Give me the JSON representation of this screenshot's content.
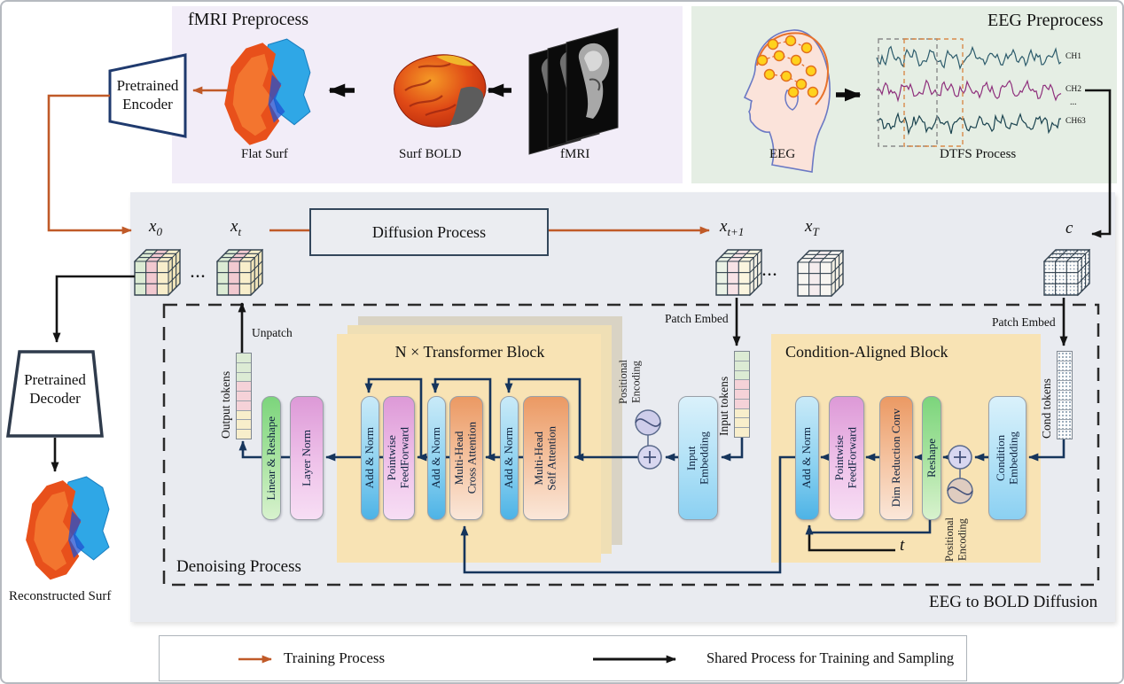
{
  "figure": {
    "fmri_panel": {
      "title": "fMRI Preprocess",
      "flat_surf": "Flat Surf",
      "surf_bold": "Surf BOLD",
      "fmri": "fMRI"
    },
    "eeg_panel": {
      "title": "EEG Preprocess",
      "eeg": "EEG",
      "dtfs": "DTFS Process",
      "ch1": "CH1",
      "ch2": "CH2",
      "ch_dots": "...",
      "ch63": "CH63"
    },
    "encoder": {
      "l1": "Pretrained",
      "l2": "Encoder"
    },
    "decoder": {
      "l1": "Pretrained",
      "l2": "Decoder"
    },
    "reconstructed": "Reconstructed Surf",
    "diffusion_box": "Diffusion Process",
    "vars": {
      "x_base": "x",
      "x0_sub": "0",
      "xt_sub": "t",
      "xt1_sub": "t+1",
      "xT_sub": "T",
      "c": "c",
      "t": "t",
      "dots": "..."
    },
    "labels": {
      "patch_embed": "Patch Embed",
      "unpatch": "Unpatch",
      "output_tokens": "Output tokens",
      "input_tokens": "Input tokens",
      "cond_tokens": "Cond tokens",
      "pos_enc_l1": "Positional",
      "pos_enc_l2": "Encoding",
      "denoising": "Denoising Process",
      "eeg2bold": "EEG to BOLD Diffusion"
    },
    "blocks": {
      "transformer": "N × Transformer Block",
      "condition": "Condition-Aligned Block"
    },
    "pills": {
      "linear_reshape": "Linear & Reshape",
      "layer_norm": "Layer Norm",
      "add_norm": "Add & Norm",
      "pointwise_l1": "Pointwise",
      "pointwise_l2": "FeedForward",
      "mhca_l1": "Multi-Head",
      "mhca_l2": "Cross Attention",
      "mhsa_l1": "Multi-Head",
      "mhsa_l2": "Self Attention",
      "input_emb_l1": "Input",
      "input_emb_l2": "Embedding",
      "cond_emb_l1": "Condition",
      "cond_emb_l2": "Embedding",
      "dim_red": "Dim Reduction Conv",
      "reshape": "Reshape"
    },
    "legend": {
      "training": "Training Process",
      "shared": "Shared Process for Training and Sampling"
    },
    "colors": {
      "training_orange": "#C05A28",
      "flow_navy": "#16355C",
      "black": "#141414",
      "panel_fmri": "#F2EDF8",
      "panel_eeg": "#E5EEE4",
      "main_box": "#E9EBF0",
      "block_tan": "#F8E3B4",
      "cube_green": "#DCEBD4",
      "cube_pink": "#F2C9D0",
      "cube_yellow": "#F8EECB",
      "wave_ch1": "#2C5B6B",
      "wave_ch2": "#8E2F7C",
      "wave_ch63": "#19424E"
    }
  }
}
